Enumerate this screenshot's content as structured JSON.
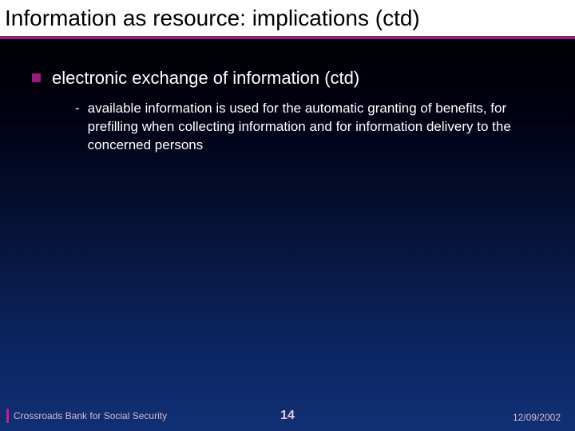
{
  "colors": {
    "accent": "#9a1b7a",
    "title_bg": "#ffffff",
    "title_text": "#000000",
    "body_text": "#ffffff",
    "bullet_square": "#9a1b7a",
    "footer_accent": "#c02090",
    "footer_text": "#d8b8d0",
    "page_number": "#e8c8e0",
    "date_text": "#d8b8d0"
  },
  "title": "Information as resource: implications (ctd)",
  "bullets": {
    "level1": "electronic exchange of information (ctd)",
    "level2_dash": "-",
    "level2": "available information is used for the automatic granting of benefits, for prefilling when collecting information and for information delivery to the concerned persons"
  },
  "footer": {
    "organization": "Crossroads Bank for Social Security",
    "page_number": "14",
    "date": "12/09/2002"
  }
}
